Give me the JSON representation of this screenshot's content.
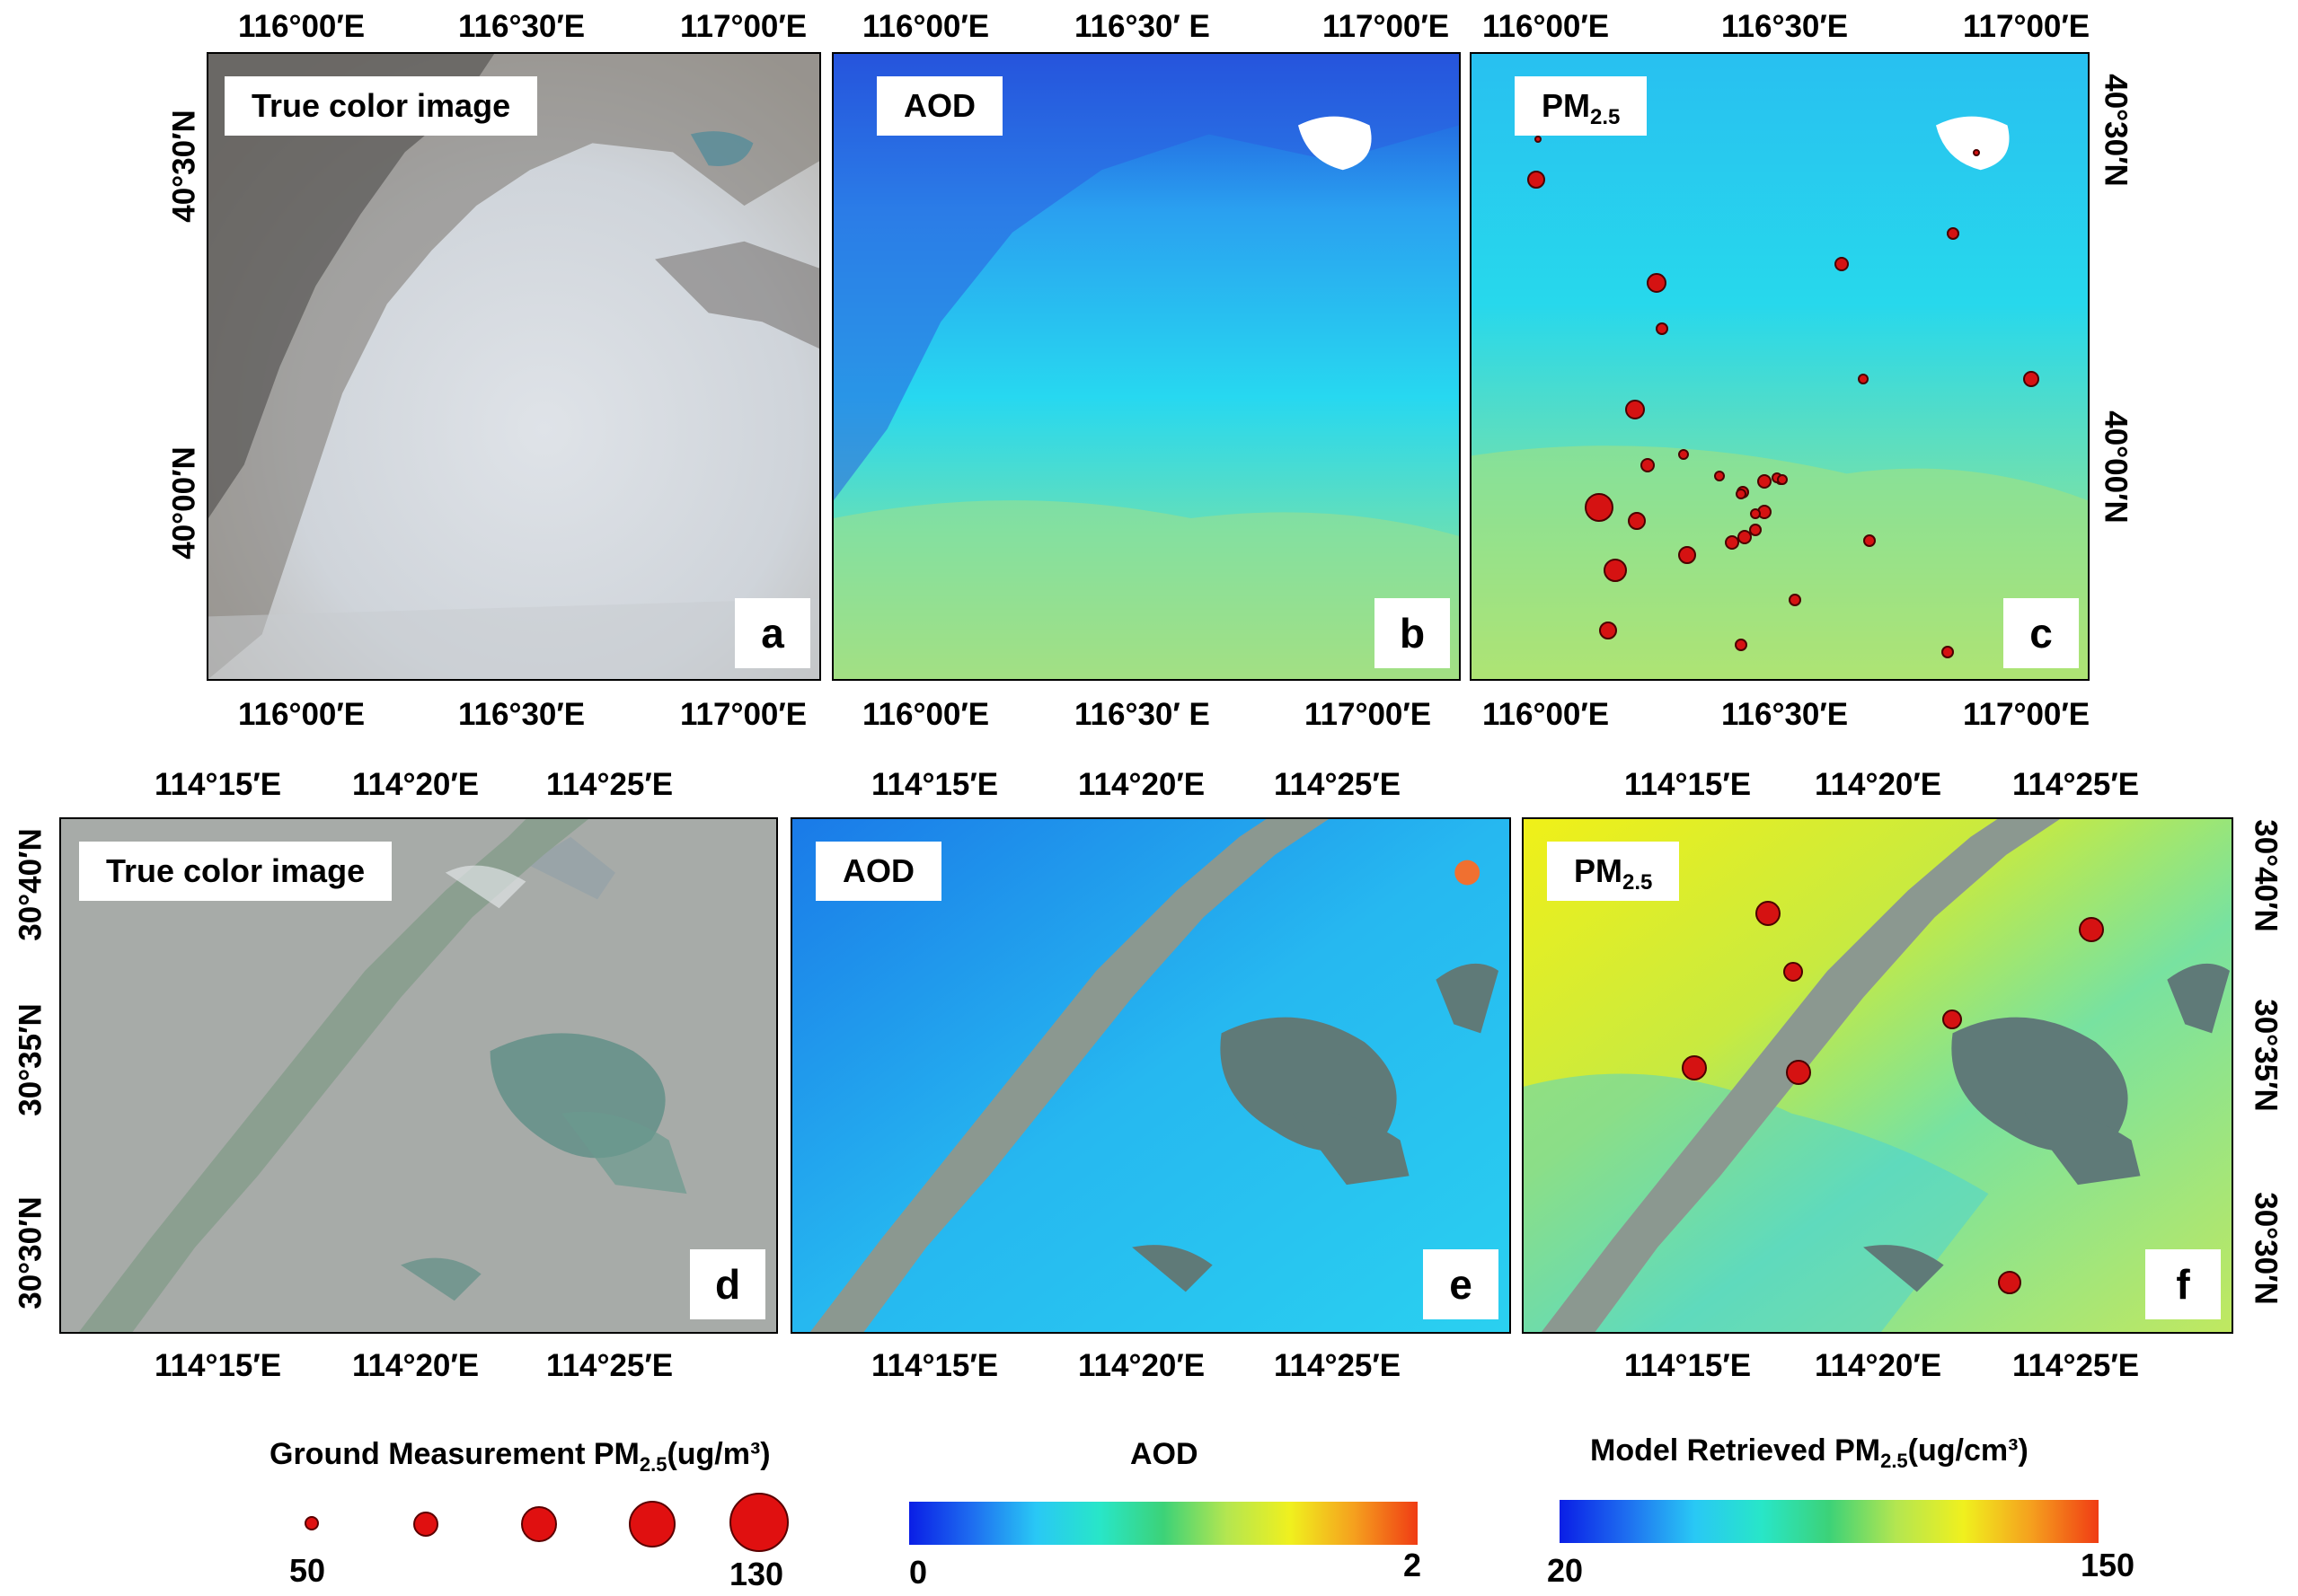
{
  "top_row": {
    "lon_ticks": [
      "116°00′E",
      "116°30′E",
      "117°00′E"
    ],
    "lon_ticks_b": [
      "116°00′E",
      "116°30′ E",
      "117°00′E"
    ],
    "lat_ticks": [
      "40°30′N",
      "40°00′N"
    ],
    "panels": {
      "a": {
        "title": "True color image",
        "letter": "a"
      },
      "b": {
        "title": "AOD",
        "letter": "b"
      },
      "c": {
        "title": "PM2.5",
        "title_main": "PM",
        "title_sub": "2.5",
        "letter": "c"
      }
    }
  },
  "bottom_row": {
    "lon_ticks": [
      "114°15′E",
      "114°20′E",
      "114°25′E"
    ],
    "lat_ticks": [
      "30°40′N",
      "30°35′N",
      "30°30′N"
    ],
    "panels": {
      "d": {
        "title": "True color image",
        "letter": "d"
      },
      "e": {
        "title": "AOD",
        "letter": "e"
      },
      "f": {
        "title": "PM2.5",
        "title_main": "PM",
        "title_sub": "2.5",
        "letter": "f"
      }
    }
  },
  "legends": {
    "ground": {
      "title_main": "Ground Measurement PM",
      "title_sub": "2.5",
      "title_unit": "(ug/m³)",
      "min": "50",
      "max": "130"
    },
    "aod": {
      "title": "AOD",
      "min": "0",
      "max": "2"
    },
    "model": {
      "title_main": "Model Retrieved PM",
      "title_sub": "2.5",
      "title_unit": "(ug/cm³)",
      "min": "20",
      "max": "150"
    }
  },
  "colors": {
    "marker_fill": "#e01010",
    "colormap": [
      "#0a1ee6",
      "#1e6ef0",
      "#29c8f5",
      "#28e6c8",
      "#3cd278",
      "#b4e650",
      "#f0f01e",
      "#f5a01e",
      "#f03c14"
    ]
  }
}
